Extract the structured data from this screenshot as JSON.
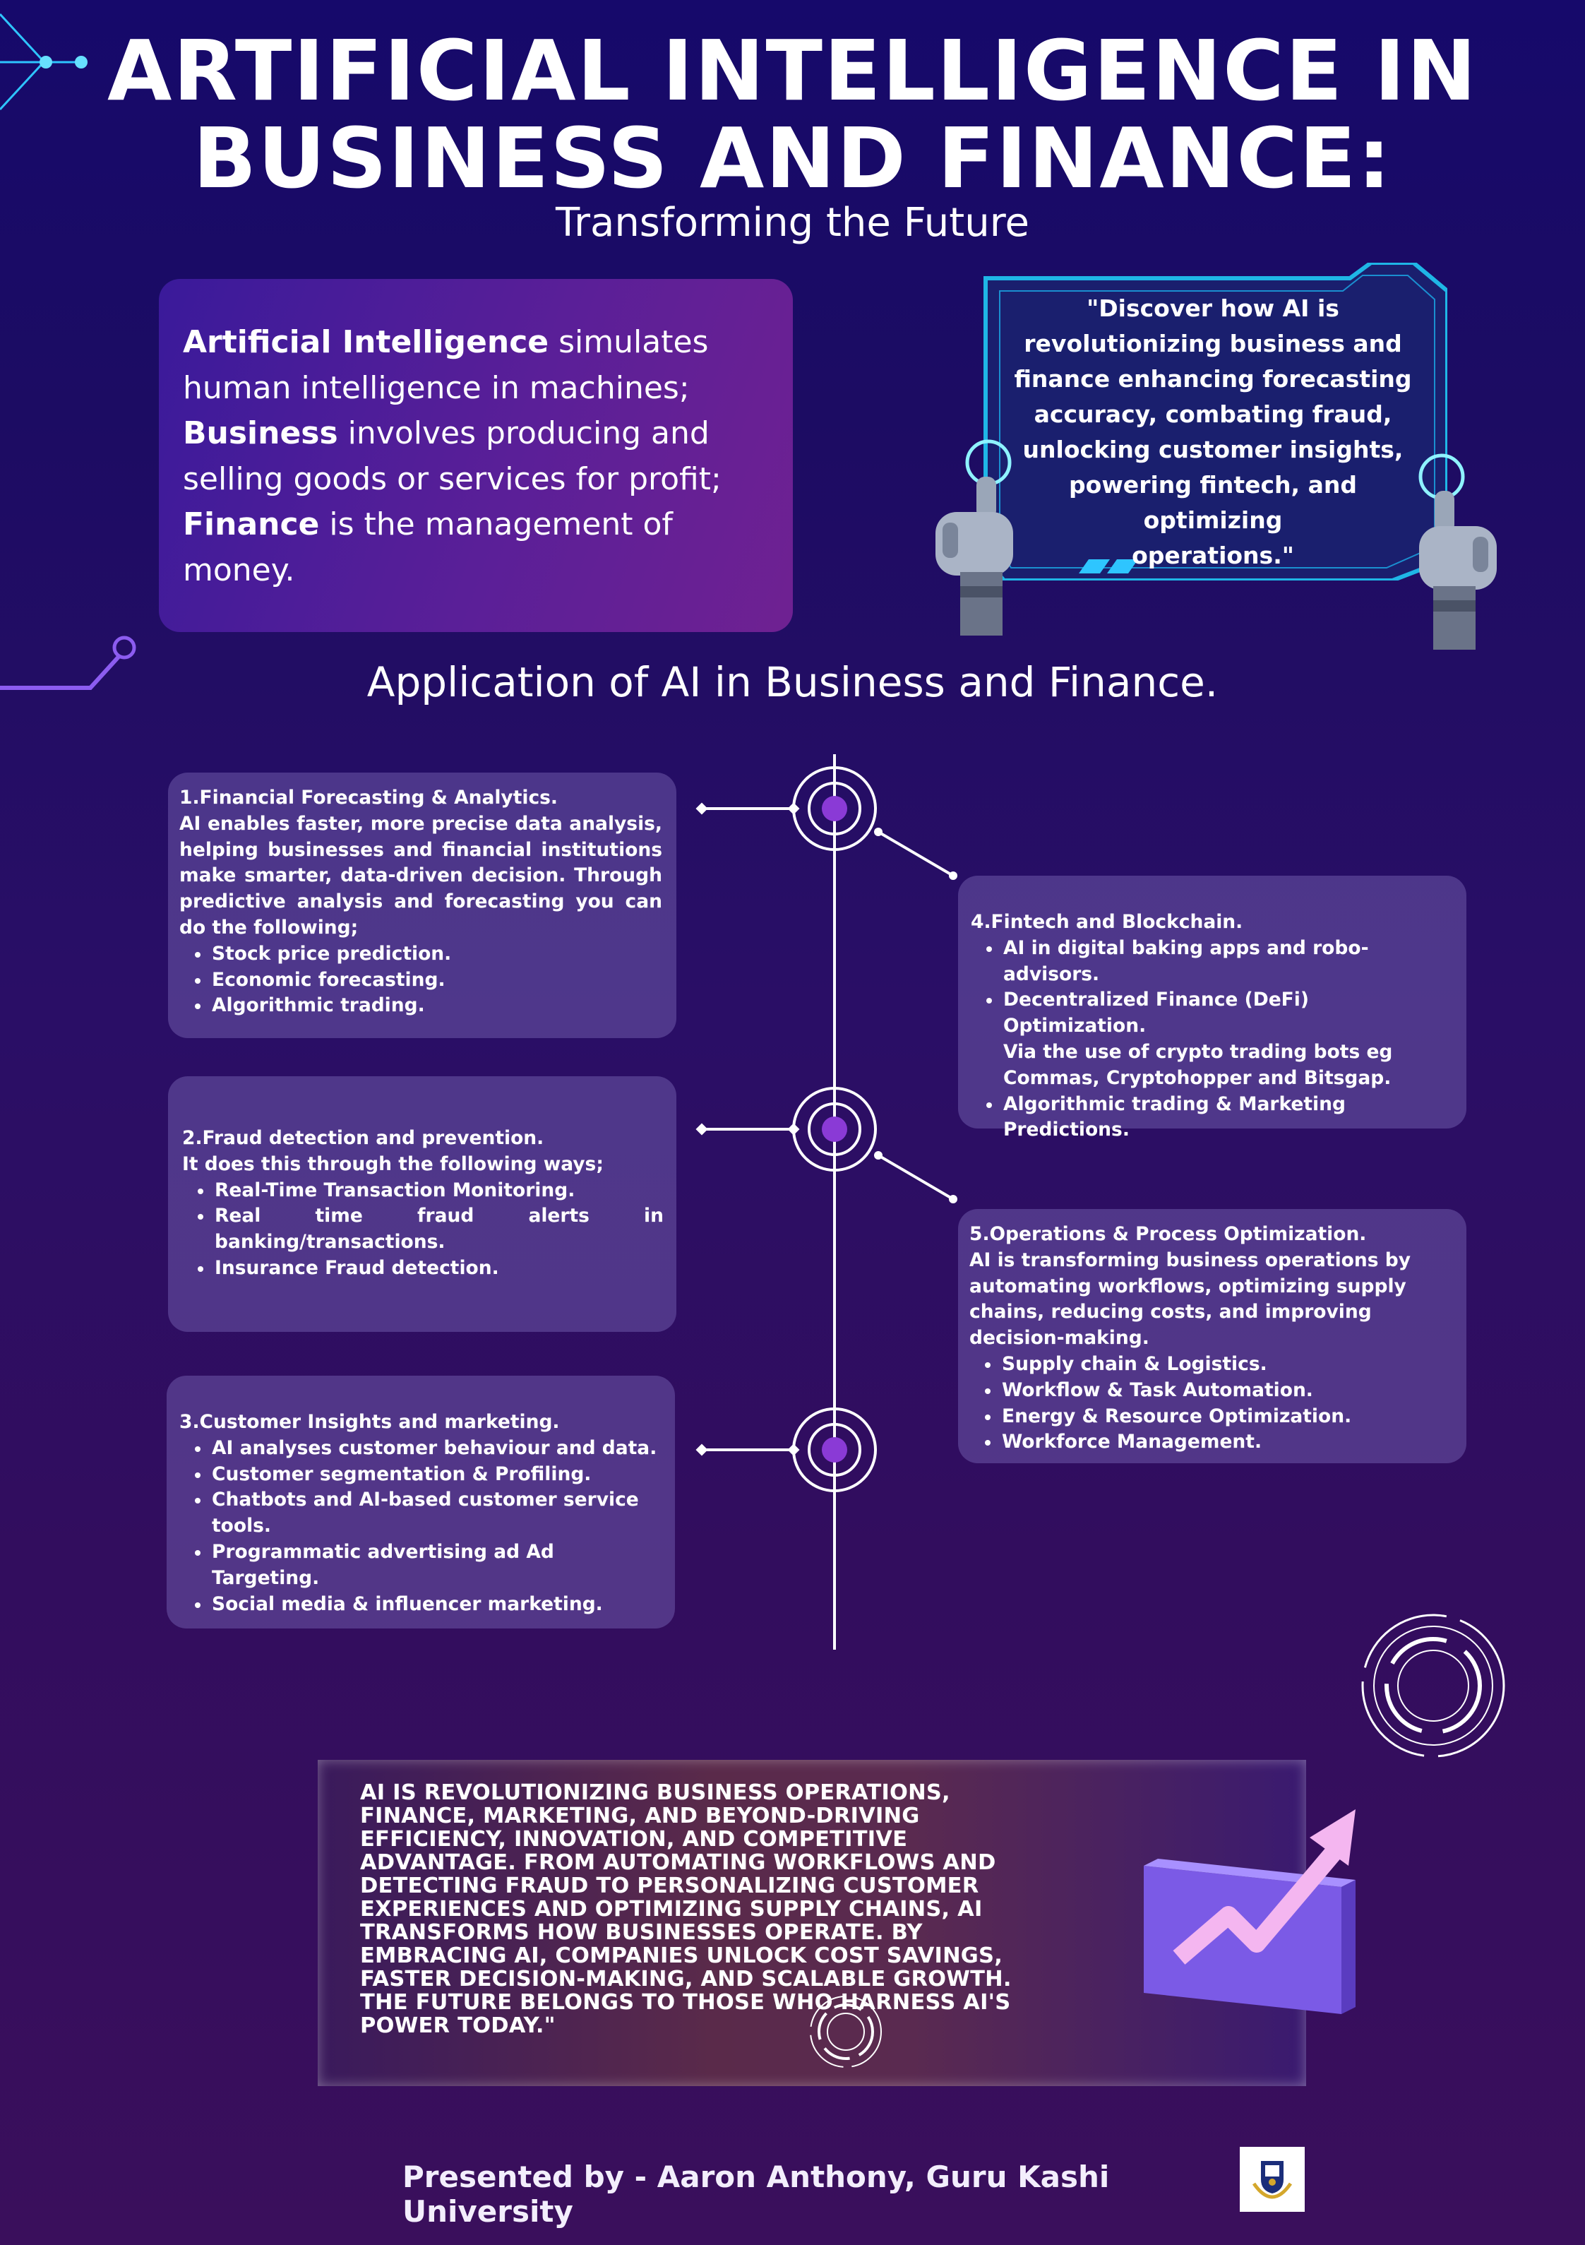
{
  "header": {
    "title_line1": "ARTIFICIAL INTELLIGENCE IN",
    "title_line2": "BUSINESS AND FINANCE:",
    "subtitle": "Transforming the Future"
  },
  "definitions": {
    "ai_term": "Artificial Intelligence",
    "ai_text": " simulates human intelligence in machines; ",
    "business_term": "Business",
    "business_text": " involves producing and selling goods or services for profit; ",
    "finance_term": "Finance",
    "finance_text": " is the management of money."
  },
  "quote": {
    "lines": [
      "\"Discover how AI is",
      "revolutionizing business and",
      "finance enhancing forecasting",
      "accuracy, combating fraud,",
      "unlocking customer insights,",
      "powering fintech, and optimizing",
      "operations.\""
    ]
  },
  "applications": {
    "heading": "Application of AI in Business and Finance.",
    "cards": [
      {
        "title": "1.Financial Forecasting & Analytics.",
        "desc": "AI enables faster, more precise data analysis, helping businesses and financial institutions make smarter, data-driven decision. Through predictive analysis and forecasting you can do the following;",
        "items": [
          "Stock price prediction.",
          "Economic forecasting.",
          "Algorithmic trading."
        ]
      },
      {
        "title": "2.Fraud detection and prevention.",
        "desc": "It does this through the following ways;",
        "items": [
          "Real-Time Transaction Monitoring.",
          "Real time fraud alerts in",
          "banking/transactions.",
          "Insurance Fraud detection."
        ]
      },
      {
        "title": "3.Customer Insights and marketing.",
        "items": [
          "AI analyses customer behaviour and data.",
          "Customer segmentation & Profiling.",
          "Chatbots and AI-based customer service",
          "tools.",
          "Programmatic advertising ad Ad Targeting.",
          "Social media & influencer marketing."
        ]
      },
      {
        "title": "4.Fintech and Blockchain.",
        "items": [
          "AI in digital baking apps and robo-advisors.",
          "Decentralized Finance (DeFi) Optimization.",
          "Via the use of crypto trading bots eg",
          "Commas, Cryptohopper and Bitsgap.",
          "Algorithmic trading & Marketing Predictions."
        ]
      },
      {
        "title": "5.Operations & Process Optimization.",
        "desc": "AI is transforming business operations by automating workflows, optimizing supply chains, reducing costs, and improving decision-making.",
        "items": [
          "Supply chain & Logistics.",
          "Workflow & Task Automation.",
          "Energy & Resource Optimization.",
          "Workforce Management."
        ]
      }
    ]
  },
  "conclusion": {
    "text": "AI IS REVOLUTIONIZING BUSINESS OPERATIONS, FINANCE, MARKETING, AND BEYOND-DRIVING EFFICIENCY, INNOVATION, AND COMPETITIVE ADVANTAGE. FROM AUTOMATING WORKFLOWS AND DETECTING FRAUD TO PERSONALIZING CUSTOMER EXPERIENCES AND OPTIMIZING SUPPLY CHAINS, AI TRANSFORMS HOW BUSINESSES OPERATE. BY EMBRACING AI, COMPANIES UNLOCK COST SAVINGS, FASTER DECISION-MAKING, AND SCALABLE GROWTH. THE FUTURE BELONGS TO THOSE WHO HARNESS AI'S POWER TODAY.\""
  },
  "footer": {
    "text": "Presented by - Aaron Anthony, Guru Kashi University"
  },
  "icons": [
    "circuit-line-icon",
    "robot-hand-icon",
    "timeline-node-icon",
    "growth-arrow-icon",
    "circular-hud-icon",
    "university-logo-icon"
  ],
  "colors": {
    "background": "#1c0c63",
    "accent_purple": "#8a3ad6",
    "frame_cyan": "#1fb6e6",
    "card": "#5a4a9a"
  }
}
